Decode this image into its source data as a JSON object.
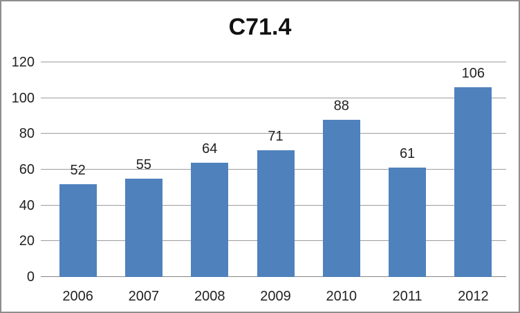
{
  "title": "C71.4",
  "colors": {
    "bar": "#4f81bd",
    "gridline": "#9c9c9c",
    "axis_line": "#868686",
    "text": "#222222",
    "title_text": "#111111",
    "frame_border": "#8e8e8e",
    "background": "#ffffff"
  },
  "chart_data": {
    "type": "bar",
    "title": "C71.4",
    "categories": [
      "2006",
      "2007",
      "2008",
      "2009",
      "2010",
      "2011",
      "2012"
    ],
    "values": [
      52,
      55,
      64,
      71,
      88,
      61,
      106
    ],
    "data_labels": [
      "52",
      "55",
      "64",
      "71",
      "88",
      "61",
      "106"
    ],
    "xlabel": "",
    "ylabel": "",
    "ylim": [
      0,
      120
    ],
    "yticks": [
      0,
      20,
      40,
      60,
      80,
      100,
      120
    ],
    "grid": true,
    "legend": false,
    "series_name": "",
    "bar_color": "#4f81bd"
  }
}
